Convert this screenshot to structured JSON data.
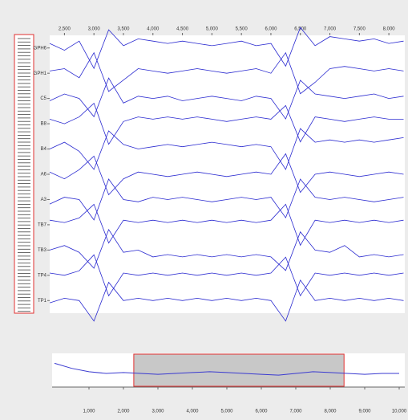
{
  "chart_data": [
    {
      "type": "line",
      "color": "#2a2ad0",
      "xlim": [
        2250,
        8270
      ],
      "xticks": [
        {
          "value": 2500,
          "label": "2,500"
        },
        {
          "value": 3000,
          "label": "3,000"
        },
        {
          "value": 3500,
          "label": "3,500"
        },
        {
          "value": 4000,
          "label": "4,000"
        },
        {
          "value": 4500,
          "label": "4,500"
        },
        {
          "value": 5000,
          "label": "5,000"
        },
        {
          "value": 5500,
          "label": "5,500"
        },
        {
          "value": 6000,
          "label": "6,000"
        },
        {
          "value": 6500,
          "label": "6,500"
        },
        {
          "value": 7000,
          "label": "7,000"
        },
        {
          "value": 7500,
          "label": "7,500"
        },
        {
          "value": 8000,
          "label": "8,000"
        }
      ],
      "ylim": [
        -1,
        1
      ],
      "x": [
        2250,
        2500,
        2750,
        3000,
        3250,
        3500,
        3750,
        4000,
        4250,
        4500,
        4750,
        5000,
        5250,
        5500,
        5750,
        6000,
        6250,
        6500,
        6750,
        7000,
        7250,
        7500,
        7750,
        8000,
        8250
      ],
      "series": [
        {
          "name": "GPH6",
          "values": [
            0.2,
            -0.1,
            0.3,
            -0.9,
            0.8,
            0.1,
            0.4,
            0.3,
            0.2,
            0.3,
            0.2,
            0.1,
            0.2,
            0.3,
            0.1,
            0.2,
            -0.8,
            0.9,
            0.1,
            0.5,
            0.4,
            0.3,
            0.4,
            0.2,
            0.3
          ]
        },
        {
          "name": "GPH1",
          "values": [
            0.1,
            0.2,
            -0.2,
            0.9,
            -0.8,
            -0.3,
            0.2,
            0.1,
            0.0,
            0.1,
            0.2,
            0.1,
            0.0,
            0.1,
            0.2,
            0.0,
            0.9,
            -0.9,
            -0.4,
            0.2,
            0.3,
            0.2,
            0.1,
            0.2,
            0.1
          ]
        },
        {
          "name": "C5",
          "values": [
            -0.1,
            0.2,
            0.0,
            -0.8,
            0.9,
            -0.2,
            0.1,
            0.0,
            0.1,
            -0.1,
            0.0,
            0.1,
            0.0,
            -0.1,
            0.1,
            0.0,
            -0.9,
            0.8,
            0.2,
            0.1,
            0.0,
            0.1,
            0.2,
            0.0,
            0.1
          ]
        },
        {
          "name": "B8",
          "values": [
            0.2,
            0.0,
            0.3,
            0.9,
            -0.9,
            0.1,
            0.3,
            0.2,
            0.3,
            0.2,
            0.3,
            0.2,
            0.1,
            0.2,
            0.3,
            0.2,
            0.8,
            -0.8,
            0.3,
            0.2,
            0.1,
            0.2,
            0.3,
            0.2,
            0.2
          ]
        },
        {
          "name": "B4",
          "values": [
            0.0,
            0.3,
            -0.1,
            -0.9,
            0.8,
            0.2,
            0.0,
            0.1,
            0.2,
            0.1,
            0.2,
            0.3,
            0.2,
            0.1,
            0.2,
            0.1,
            -0.9,
            0.9,
            0.3,
            0.4,
            0.3,
            0.4,
            0.3,
            0.4,
            0.5
          ]
        },
        {
          "name": "A6",
          "values": [
            0.1,
            -0.2,
            0.2,
            0.8,
            -0.9,
            -0.2,
            0.1,
            0.0,
            -0.1,
            0.0,
            0.1,
            0.0,
            -0.1,
            0.0,
            0.1,
            0.0,
            0.9,
            -0.8,
            0.0,
            0.1,
            0.0,
            -0.1,
            0.0,
            0.1,
            0.0
          ]
        },
        {
          "name": "A3",
          "values": [
            -0.2,
            0.1,
            0.0,
            -0.9,
            0.9,
            0.0,
            -0.1,
            0.1,
            0.0,
            0.1,
            0.0,
            -0.1,
            0.0,
            0.1,
            0.0,
            0.1,
            -0.8,
            0.9,
            0.1,
            0.0,
            0.1,
            0.0,
            -0.1,
            0.0,
            0.1
          ]
        },
        {
          "name": "TB7",
          "values": [
            0.2,
            0.1,
            0.3,
            0.9,
            -0.8,
            0.2,
            0.1,
            0.2,
            0.1,
            0.2,
            0.1,
            0.2,
            0.1,
            0.2,
            0.1,
            0.2,
            0.9,
            -0.9,
            0.2,
            0.1,
            0.2,
            0.1,
            0.2,
            0.1,
            0.2
          ]
        },
        {
          "name": "TB3",
          "values": [
            0.0,
            0.2,
            -0.1,
            -0.8,
            0.9,
            -0.1,
            0.0,
            -0.3,
            -0.2,
            -0.3,
            -0.2,
            -0.3,
            -0.2,
            -0.3,
            -0.2,
            -0.3,
            -0.9,
            0.8,
            0.0,
            -0.1,
            0.2,
            -0.3,
            -0.2,
            -0.3,
            -0.2
          ]
        },
        {
          "name": "TP4",
          "values": [
            0.1,
            0.0,
            0.2,
            0.9,
            -0.9,
            0.1,
            0.0,
            0.1,
            0.0,
            0.1,
            0.0,
            0.1,
            0.0,
            0.1,
            0.0,
            0.1,
            0.8,
            -0.9,
            0.1,
            0.0,
            0.1,
            0.0,
            0.1,
            0.0,
            0.1
          ]
        },
        {
          "name": "TP1",
          "values": [
            -0.1,
            0.1,
            0.0,
            -0.9,
            0.8,
            0.0,
            0.1,
            0.0,
            0.1,
            0.0,
            0.1,
            0.0,
            0.1,
            0.0,
            0.1,
            0.0,
            -0.9,
            0.9,
            0.0,
            0.1,
            0.0,
            0.1,
            0.0,
            0.1,
            0.0
          ]
        }
      ]
    },
    {
      "type": "line",
      "color": "#3a3ad0",
      "xlim": [
        0,
        10000
      ],
      "xticks": [
        {
          "value": 1000,
          "label": "1,000"
        },
        {
          "value": 2000,
          "label": "2,000"
        },
        {
          "value": 3000,
          "label": "3,000"
        },
        {
          "value": 4000,
          "label": "4,000"
        },
        {
          "value": 5000,
          "label": "5,000"
        },
        {
          "value": 6000,
          "label": "6,000"
        },
        {
          "value": 7000,
          "label": "7,000"
        },
        {
          "value": 8000,
          "label": "8,000"
        },
        {
          "value": 9000,
          "label": "9,000"
        },
        {
          "value": 10000,
          "label": "10,000"
        }
      ],
      "ylim": [
        -1,
        1
      ],
      "x": [
        0,
        500,
        1000,
        1500,
        2000,
        2500,
        3000,
        3500,
        4000,
        4500,
        5000,
        5500,
        6000,
        6500,
        7000,
        7500,
        8000,
        8500,
        9000,
        9500,
        10000
      ],
      "values": [
        0.6,
        0.3,
        0.1,
        0.0,
        0.05,
        0.0,
        -0.05,
        0.0,
        0.05,
        0.1,
        0.05,
        0.0,
        -0.05,
        -0.1,
        0.0,
        0.1,
        0.05,
        0.0,
        -0.05,
        0.0,
        0.0
      ],
      "selection": [
        2300,
        8400
      ]
    }
  ]
}
